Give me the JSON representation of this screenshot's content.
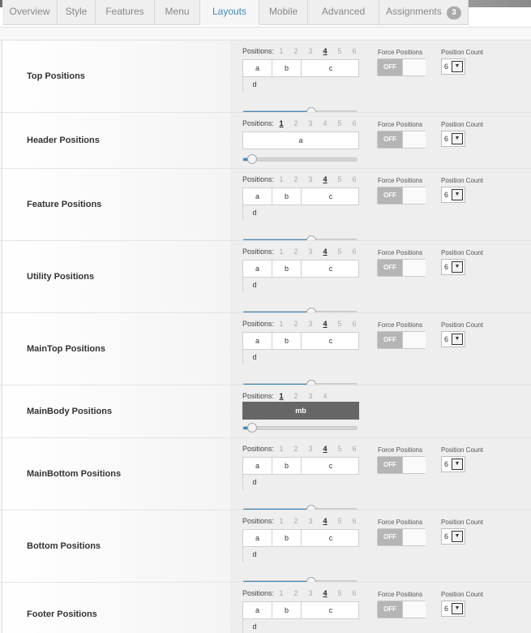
{
  "tabs": [
    {
      "label": "Overview",
      "badge": ""
    },
    {
      "label": "Style",
      "badge": ""
    },
    {
      "label": "Features",
      "badge": ""
    },
    {
      "label": "Menu",
      "badge": ""
    },
    {
      "label": "Layouts",
      "badge": ""
    },
    {
      "label": "Mobile",
      "badge": ""
    },
    {
      "label": "Advanced",
      "badge": ""
    },
    {
      "label": "Assignments",
      "badge": "3"
    }
  ],
  "active_tab": "Layouts",
  "accent_color": "#3d8bbd",
  "common": {
    "positions_label": "Positions:",
    "force_label": "Force Positions",
    "toggle_off": "OFF",
    "count_label": "Position Count"
  },
  "rows": [
    {
      "label": "Top Positions",
      "numbers": [
        "1",
        "2",
        "3",
        "4",
        "5",
        "6"
      ],
      "selected": "4",
      "cells": [
        "a",
        "b",
        "c",
        "d"
      ],
      "slider_fraction": 0.6,
      "force": true,
      "count": "6"
    },
    {
      "label": "Header Positions",
      "numbers": [
        "1",
        "2",
        "3",
        "4",
        "5",
        "6"
      ],
      "selected": "1",
      "cells": [
        "a"
      ],
      "slider_fraction": 0.08,
      "force": true,
      "count": "6"
    },
    {
      "label": "Feature Positions",
      "numbers": [
        "1",
        "2",
        "3",
        "4",
        "5",
        "6"
      ],
      "selected": "4",
      "cells": [
        "a",
        "b",
        "c",
        "d"
      ],
      "slider_fraction": 0.6,
      "force": true,
      "count": "6"
    },
    {
      "label": "Utility Positions",
      "numbers": [
        "1",
        "2",
        "3",
        "4",
        "5",
        "6"
      ],
      "selected": "4",
      "cells": [
        "a",
        "b",
        "c",
        "d"
      ],
      "slider_fraction": 0.6,
      "force": true,
      "count": "6"
    },
    {
      "label": "MainTop Positions",
      "numbers": [
        "1",
        "2",
        "3",
        "4",
        "5",
        "6"
      ],
      "selected": "4",
      "cells": [
        "a",
        "b",
        "c",
        "d"
      ],
      "slider_fraction": 0.6,
      "force": true,
      "count": "6"
    },
    {
      "label": "MainBody Positions",
      "numbers": [
        "1",
        "2",
        "3",
        "4"
      ],
      "selected": "1",
      "cells": [
        "mb"
      ],
      "slider_fraction": 0.08,
      "force": false,
      "count": ""
    },
    {
      "label": "MainBottom Positions",
      "numbers": [
        "1",
        "2",
        "3",
        "4",
        "5",
        "6"
      ],
      "selected": "4",
      "cells": [
        "a",
        "b",
        "c",
        "d"
      ],
      "slider_fraction": 0.6,
      "force": true,
      "count": "6"
    },
    {
      "label": "Bottom Positions",
      "numbers": [
        "1",
        "2",
        "3",
        "4",
        "5",
        "6"
      ],
      "selected": "4",
      "cells": [
        "a",
        "b",
        "c",
        "d"
      ],
      "slider_fraction": 0.6,
      "force": true,
      "count": "6"
    },
    {
      "label": "Footer Positions",
      "numbers": [
        "1",
        "2",
        "3",
        "4",
        "5",
        "6"
      ],
      "selected": "4",
      "cells": [
        "a",
        "b",
        "c",
        "d"
      ],
      "slider_fraction": 0.6,
      "force": true,
      "count": "6"
    }
  ]
}
